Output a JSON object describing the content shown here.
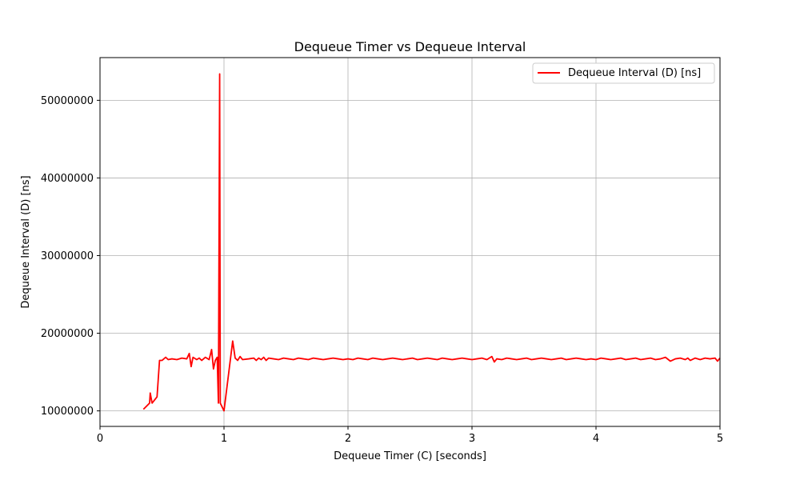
{
  "chart_data": {
    "type": "line",
    "title": "Dequeue Timer vs Dequeue Interval",
    "xlabel": "Dequeue Timer (C) [seconds]",
    "ylabel": "Dequeue Interval (D) [ns]",
    "xlim": [
      0,
      5
    ],
    "ylim": [
      8000000,
      55500000
    ],
    "xticks": [
      0,
      1,
      2,
      3,
      4,
      5
    ],
    "xtick_labels": [
      "0",
      "1",
      "2",
      "3",
      "4",
      "5"
    ],
    "yticks": [
      10000000,
      20000000,
      30000000,
      40000000,
      50000000
    ],
    "ytick_labels": [
      "10000000",
      "20000000",
      "30000000",
      "40000000",
      "50000000"
    ],
    "grid": true,
    "legend_position": "top-right",
    "series": [
      {
        "name": "Dequeue Interval (D) [ns]",
        "color": "#ff0000",
        "x": [
          0.35,
          0.4,
          0.405,
          0.42,
          0.46,
          0.48,
          0.5,
          0.53,
          0.55,
          0.58,
          0.62,
          0.66,
          0.7,
          0.72,
          0.735,
          0.75,
          0.78,
          0.8,
          0.82,
          0.85,
          0.88,
          0.9,
          0.915,
          0.93,
          0.945,
          0.955,
          0.965,
          0.97,
          1.0,
          1.07,
          1.09,
          1.11,
          1.13,
          1.15,
          1.2,
          1.24,
          1.26,
          1.28,
          1.3,
          1.32,
          1.34,
          1.36,
          1.4,
          1.44,
          1.48,
          1.52,
          1.56,
          1.6,
          1.64,
          1.68,
          1.72,
          1.76,
          1.8,
          1.84,
          1.88,
          1.92,
          1.96,
          2.0,
          2.04,
          2.08,
          2.12,
          2.16,
          2.2,
          2.24,
          2.28,
          2.32,
          2.36,
          2.4,
          2.44,
          2.48,
          2.52,
          2.56,
          2.6,
          2.64,
          2.68,
          2.72,
          2.76,
          2.8,
          2.84,
          2.88,
          2.92,
          2.96,
          3.0,
          3.04,
          3.08,
          3.12,
          3.16,
          3.18,
          3.2,
          3.24,
          3.28,
          3.32,
          3.36,
          3.4,
          3.44,
          3.48,
          3.52,
          3.56,
          3.6,
          3.64,
          3.68,
          3.72,
          3.76,
          3.8,
          3.84,
          3.88,
          3.92,
          3.96,
          4.0,
          4.04,
          4.08,
          4.12,
          4.16,
          4.2,
          4.24,
          4.28,
          4.32,
          4.36,
          4.4,
          4.44,
          4.48,
          4.52,
          4.56,
          4.6,
          4.64,
          4.68,
          4.72,
          4.74,
          4.76,
          4.8,
          4.84,
          4.88,
          4.92,
          4.96,
          4.98,
          5.0
        ],
        "y": [
          10200000,
          11000000,
          12300000,
          11000000,
          11800000,
          16500000,
          16500000,
          16900000,
          16600000,
          16700000,
          16600000,
          16800000,
          16700000,
          17400000,
          15700000,
          16900000,
          16600000,
          16800000,
          16500000,
          16900000,
          16600000,
          17900000,
          15400000,
          16500000,
          16900000,
          11000000,
          53400000,
          11000000,
          10000000,
          19000000,
          16800000,
          16500000,
          17000000,
          16600000,
          16700000,
          16800000,
          16500000,
          16800000,
          16600000,
          16900000,
          16500000,
          16800000,
          16700000,
          16600000,
          16800000,
          16700000,
          16600000,
          16800000,
          16700000,
          16600000,
          16800000,
          16700000,
          16600000,
          16700000,
          16800000,
          16700000,
          16600000,
          16700000,
          16600000,
          16800000,
          16700000,
          16600000,
          16800000,
          16700000,
          16600000,
          16700000,
          16800000,
          16700000,
          16600000,
          16700000,
          16800000,
          16600000,
          16700000,
          16800000,
          16700000,
          16600000,
          16800000,
          16700000,
          16600000,
          16700000,
          16800000,
          16700000,
          16600000,
          16700000,
          16800000,
          16600000,
          17000000,
          16300000,
          16700000,
          16600000,
          16800000,
          16700000,
          16600000,
          16700000,
          16800000,
          16600000,
          16700000,
          16800000,
          16700000,
          16600000,
          16700000,
          16800000,
          16600000,
          16700000,
          16800000,
          16700000,
          16600000,
          16700000,
          16600000,
          16800000,
          16700000,
          16600000,
          16700000,
          16800000,
          16600000,
          16700000,
          16800000,
          16600000,
          16700000,
          16800000,
          16600000,
          16700000,
          16900000,
          16400000,
          16700000,
          16800000,
          16600000,
          16800000,
          16500000,
          16800000,
          16600000,
          16800000,
          16700000,
          16800000,
          16400000,
          16800000
        ]
      }
    ]
  }
}
